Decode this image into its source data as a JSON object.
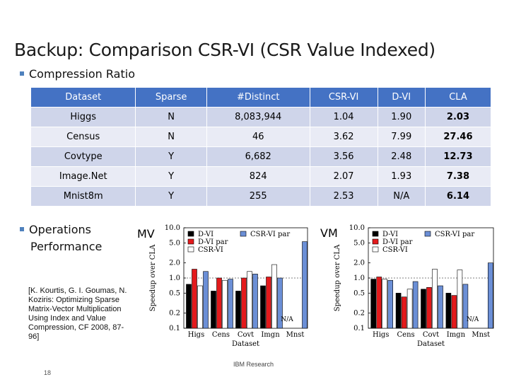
{
  "slide": {
    "title": "Backup: Comparison CSR-VI (CSR Value Indexed)",
    "bullet_compression": "Compression Ratio",
    "bullet_ops_line1": "Operations",
    "bullet_ops_line2": "Performance",
    "citation": "[K. Kourtis, G. I. Goumas, N. Koziris: Optimizing Sparse Matrix-Vector Multiplication Using Index and Value Compression, CF 2008, 87-96]",
    "footer": "IBM Research",
    "page_number": "18",
    "mv_label": "MV",
    "vm_label": "VM"
  },
  "table": {
    "headers": [
      "Dataset",
      "Sparse",
      "#Distinct",
      "CSR-VI",
      "D-VI",
      "CLA"
    ],
    "rows": [
      [
        "Higgs",
        "N",
        "8,083,944",
        "1.04",
        "1.90",
        "2.03"
      ],
      [
        "Census",
        "N",
        "46",
        "3.62",
        "7.99",
        "27.46"
      ],
      [
        "Covtype",
        "Y",
        "6,682",
        "3.56",
        "2.48",
        "12.73"
      ],
      [
        "Image.Net",
        "Y",
        "824",
        "2.07",
        "1.93",
        "7.38"
      ],
      [
        "Mnist8m",
        "Y",
        "255",
        "2.53",
        "N/A",
        "6.14"
      ]
    ]
  },
  "chart_data": [
    {
      "type": "bar",
      "title": "MV",
      "xlabel": "Dataset",
      "ylabel": "Speedup over CLA",
      "yscale": "log",
      "ylim": [
        0.1,
        10.0
      ],
      "yticks": [
        "10.0",
        "5.0",
        "2.0",
        "1.0",
        "0.5",
        "0.2",
        "0.1"
      ],
      "yticks_values": [
        10.0,
        5.0,
        2.0,
        1.0,
        0.5,
        0.2,
        0.1
      ],
      "categories": [
        "Higs",
        "Cens",
        "Covt",
        "Imgn",
        "Mnst"
      ],
      "legend": [
        "D-VI",
        "CSR-VI",
        "D-VI par",
        "CSR-VI par"
      ],
      "series": [
        {
          "name": "D-VI",
          "color": "#000000",
          "values": [
            0.75,
            0.55,
            0.55,
            0.7,
            null
          ]
        },
        {
          "name": "D-VI par",
          "color": "#e31a1c",
          "values": [
            1.5,
            1.0,
            1.0,
            1.05,
            null
          ]
        },
        {
          "name": "CSR-VI",
          "color": "#ffffff",
          "values": [
            0.7,
            0.9,
            1.35,
            1.85,
            null
          ]
        },
        {
          "name": "CSR-VI par",
          "color": "#6b8fd6",
          "values": [
            1.35,
            0.95,
            1.2,
            1.0,
            5.3
          ]
        }
      ],
      "annotations": [
        "N/A"
      ]
    },
    {
      "type": "bar",
      "title": "VM",
      "xlabel": "Dataset",
      "ylabel": "Speedup over CLA",
      "yscale": "log",
      "ylim": [
        0.1,
        10.0
      ],
      "yticks": [
        "10.0",
        "5.0",
        "2.0",
        "1.0",
        "0.5",
        "0.2",
        "0.1"
      ],
      "yticks_values": [
        10.0,
        5.0,
        2.0,
        1.0,
        0.5,
        0.2,
        0.1
      ],
      "categories": [
        "Higs",
        "Cens",
        "Covt",
        "Imgn",
        "Mnst"
      ],
      "legend": [
        "D-VI",
        "D-VI par",
        "CSR-VI",
        "CSR-VI par"
      ],
      "series": [
        {
          "name": "D-VI",
          "color": "#000000",
          "values": [
            0.95,
            0.5,
            0.6,
            0.5,
            null
          ]
        },
        {
          "name": "D-VI par",
          "color": "#e31a1c",
          "values": [
            1.05,
            0.42,
            0.65,
            0.45,
            null
          ]
        },
        {
          "name": "CSR-VI",
          "color": "#ffffff",
          "values": [
            0.95,
            0.6,
            1.5,
            1.45,
            null
          ]
        },
        {
          "name": "CSR-VI par",
          "color": "#6b8fd6",
          "values": [
            0.9,
            0.85,
            0.7,
            0.75,
            2.0
          ]
        }
      ],
      "annotations": [
        "N/A"
      ]
    }
  ]
}
